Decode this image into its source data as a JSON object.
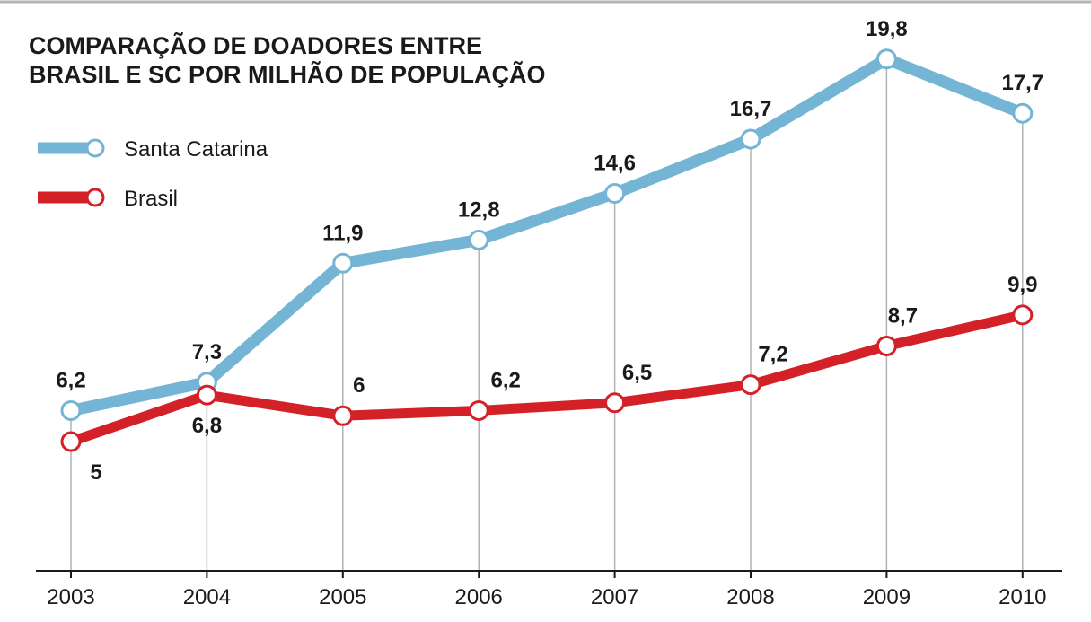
{
  "chart_data": {
    "type": "line",
    "title_lines": [
      "COMPARAÇÃO DE DOADORES ENTRE",
      "BRASIL E SC POR MILHÃO DE POPULAÇÃO"
    ],
    "x": [
      "2003",
      "2004",
      "2005",
      "2006",
      "2007",
      "2008",
      "2009",
      "2010"
    ],
    "xlabel": "",
    "ylabel": "",
    "ylim": [
      0,
      22
    ],
    "grid": "vertical",
    "legend_position": "top-left",
    "series": [
      {
        "name": "Santa Catarina",
        "color": "#74b4d4",
        "values": [
          6.2,
          7.3,
          11.9,
          12.8,
          14.6,
          16.7,
          19.8,
          17.7
        ],
        "labels": [
          "6,2",
          "7,3",
          "11,9",
          "12,8",
          "14,6",
          "16,7",
          "19,8",
          "17,7"
        ]
      },
      {
        "name": "Brasil",
        "color": "#d42128",
        "values": [
          5,
          6.8,
          6,
          6.2,
          6.5,
          7.2,
          8.7,
          9.9
        ],
        "labels": [
          "5",
          "6,8",
          "6",
          "6,2",
          "6,5",
          "7,2",
          "8,7",
          "9,9"
        ]
      }
    ]
  }
}
